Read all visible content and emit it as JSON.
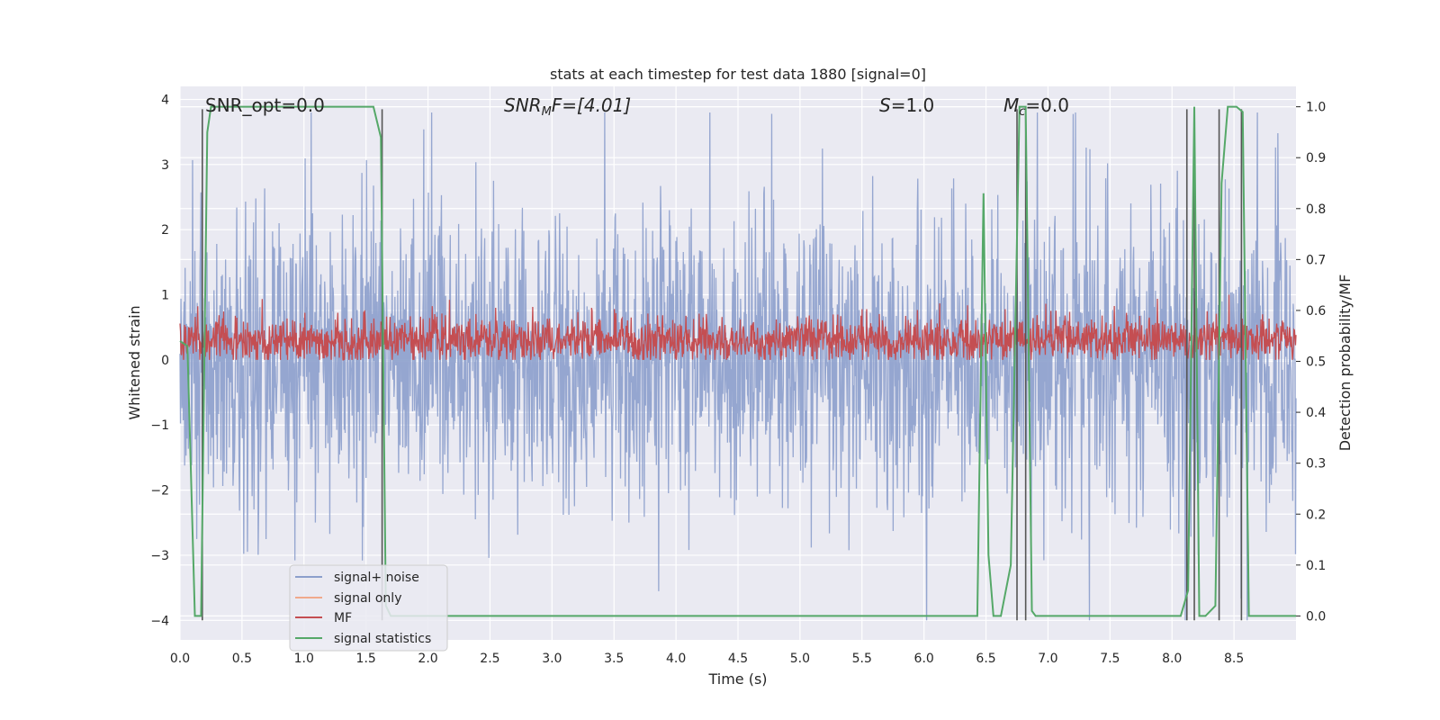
{
  "chart_data": {
    "type": "line",
    "title": "stats at each timestep for test data 1880 [signal=0]",
    "xlabel": "Time (s)",
    "ylabel": "Whitened strain",
    "ylabel_right": "Detection probability/MF",
    "xlim": [
      0.0,
      9.0
    ],
    "ylim": [
      -4.3,
      4.2
    ],
    "ylim_right": [
      -0.047,
      1.04
    ],
    "x_ticks": [
      "0.0",
      "0.5",
      "1.0",
      "1.5",
      "2.0",
      "2.5",
      "3.0",
      "3.5",
      "4.0",
      "4.5",
      "5.0",
      "5.5",
      "6.0",
      "6.5",
      "7.0",
      "7.5",
      "8.0",
      "8.5"
    ],
    "x_tick_values": [
      0.0,
      0.5,
      1.0,
      1.5,
      2.0,
      2.5,
      3.0,
      3.5,
      4.0,
      4.5,
      5.0,
      5.5,
      6.0,
      6.5,
      7.0,
      7.5,
      8.0,
      8.5
    ],
    "y_ticks": [
      "4",
      "3",
      "2",
      "1",
      "0",
      "−1",
      "−2",
      "−3",
      "−4"
    ],
    "y_tick_values": [
      4,
      3,
      2,
      1,
      0,
      -1,
      -2,
      -3,
      -4
    ],
    "y_ticks_right": [
      "1.0",
      "0.9",
      "0.8",
      "0.7",
      "0.6",
      "0.5",
      "0.4",
      "0.3",
      "0.2",
      "0.1",
      "0.0"
    ],
    "y_tick_values_right": [
      1.0,
      0.9,
      0.8,
      0.7,
      0.6,
      0.5,
      0.4,
      0.3,
      0.2,
      0.1,
      0.0
    ],
    "grid": true,
    "legend_position": "lower-left",
    "annotations": {
      "snr_opt": "SNR_opt=0.0",
      "snr_mf_prefix": "SNR",
      "snr_mf_sub": "M",
      "snr_mf_suffix": "F=[4.01]",
      "s_prefix": "S",
      "s_suffix": "=1.0",
      "mc_prefix": "M",
      "mc_sub": "c",
      "mc_suffix": "=0.0"
    },
    "series": [
      {
        "name": "signal+ noise",
        "color": "#8c9fcc",
        "kind": "noise",
        "amplitude_range": [
          -4.0,
          3.8
        ]
      },
      {
        "name": "signal only",
        "color": "#f0a98c",
        "kind": "flat",
        "values": [
          0.0
        ]
      },
      {
        "name": "MF",
        "color": "#c44e52",
        "kind": "noise",
        "amplitude_range": [
          0.0,
          1.0
        ]
      },
      {
        "name": "signal statistics",
        "color": "#55a868",
        "x": [
          0.0,
          0.06,
          0.12,
          0.17,
          0.22,
          0.25,
          0.3,
          0.5,
          1.0,
          1.5,
          1.56,
          1.62,
          1.66,
          1.7,
          2.0,
          6.0,
          6.43,
          6.48,
          6.52,
          6.56,
          6.62,
          6.7,
          6.77,
          6.82,
          6.87,
          6.9,
          7.0,
          8.0,
          8.07,
          8.13,
          8.18,
          8.22,
          8.27,
          8.35,
          8.4,
          8.45,
          8.52,
          8.57,
          8.62,
          9.0
        ],
        "values": [
          0.54,
          0.53,
          0.0,
          0.0,
          0.95,
          1.0,
          1.0,
          1.0,
          1.0,
          1.0,
          1.0,
          0.94,
          0.02,
          0.0,
          0.0,
          0.0,
          0.0,
          0.83,
          0.12,
          0.0,
          0.0,
          0.1,
          1.0,
          1.0,
          0.01,
          0.0,
          0.0,
          0.0,
          0.0,
          0.05,
          1.0,
          0.0,
          0.0,
          0.02,
          0.85,
          1.0,
          1.0,
          0.99,
          0.0,
          0.0
        ]
      }
    ],
    "vertical_markers": {
      "color": "#555555",
      "x": [
        0.18,
        1.63,
        6.75,
        6.82,
        8.12,
        8.18,
        8.38,
        8.56
      ],
      "y_top": 3.85,
      "y_bottom": -4.0
    }
  }
}
